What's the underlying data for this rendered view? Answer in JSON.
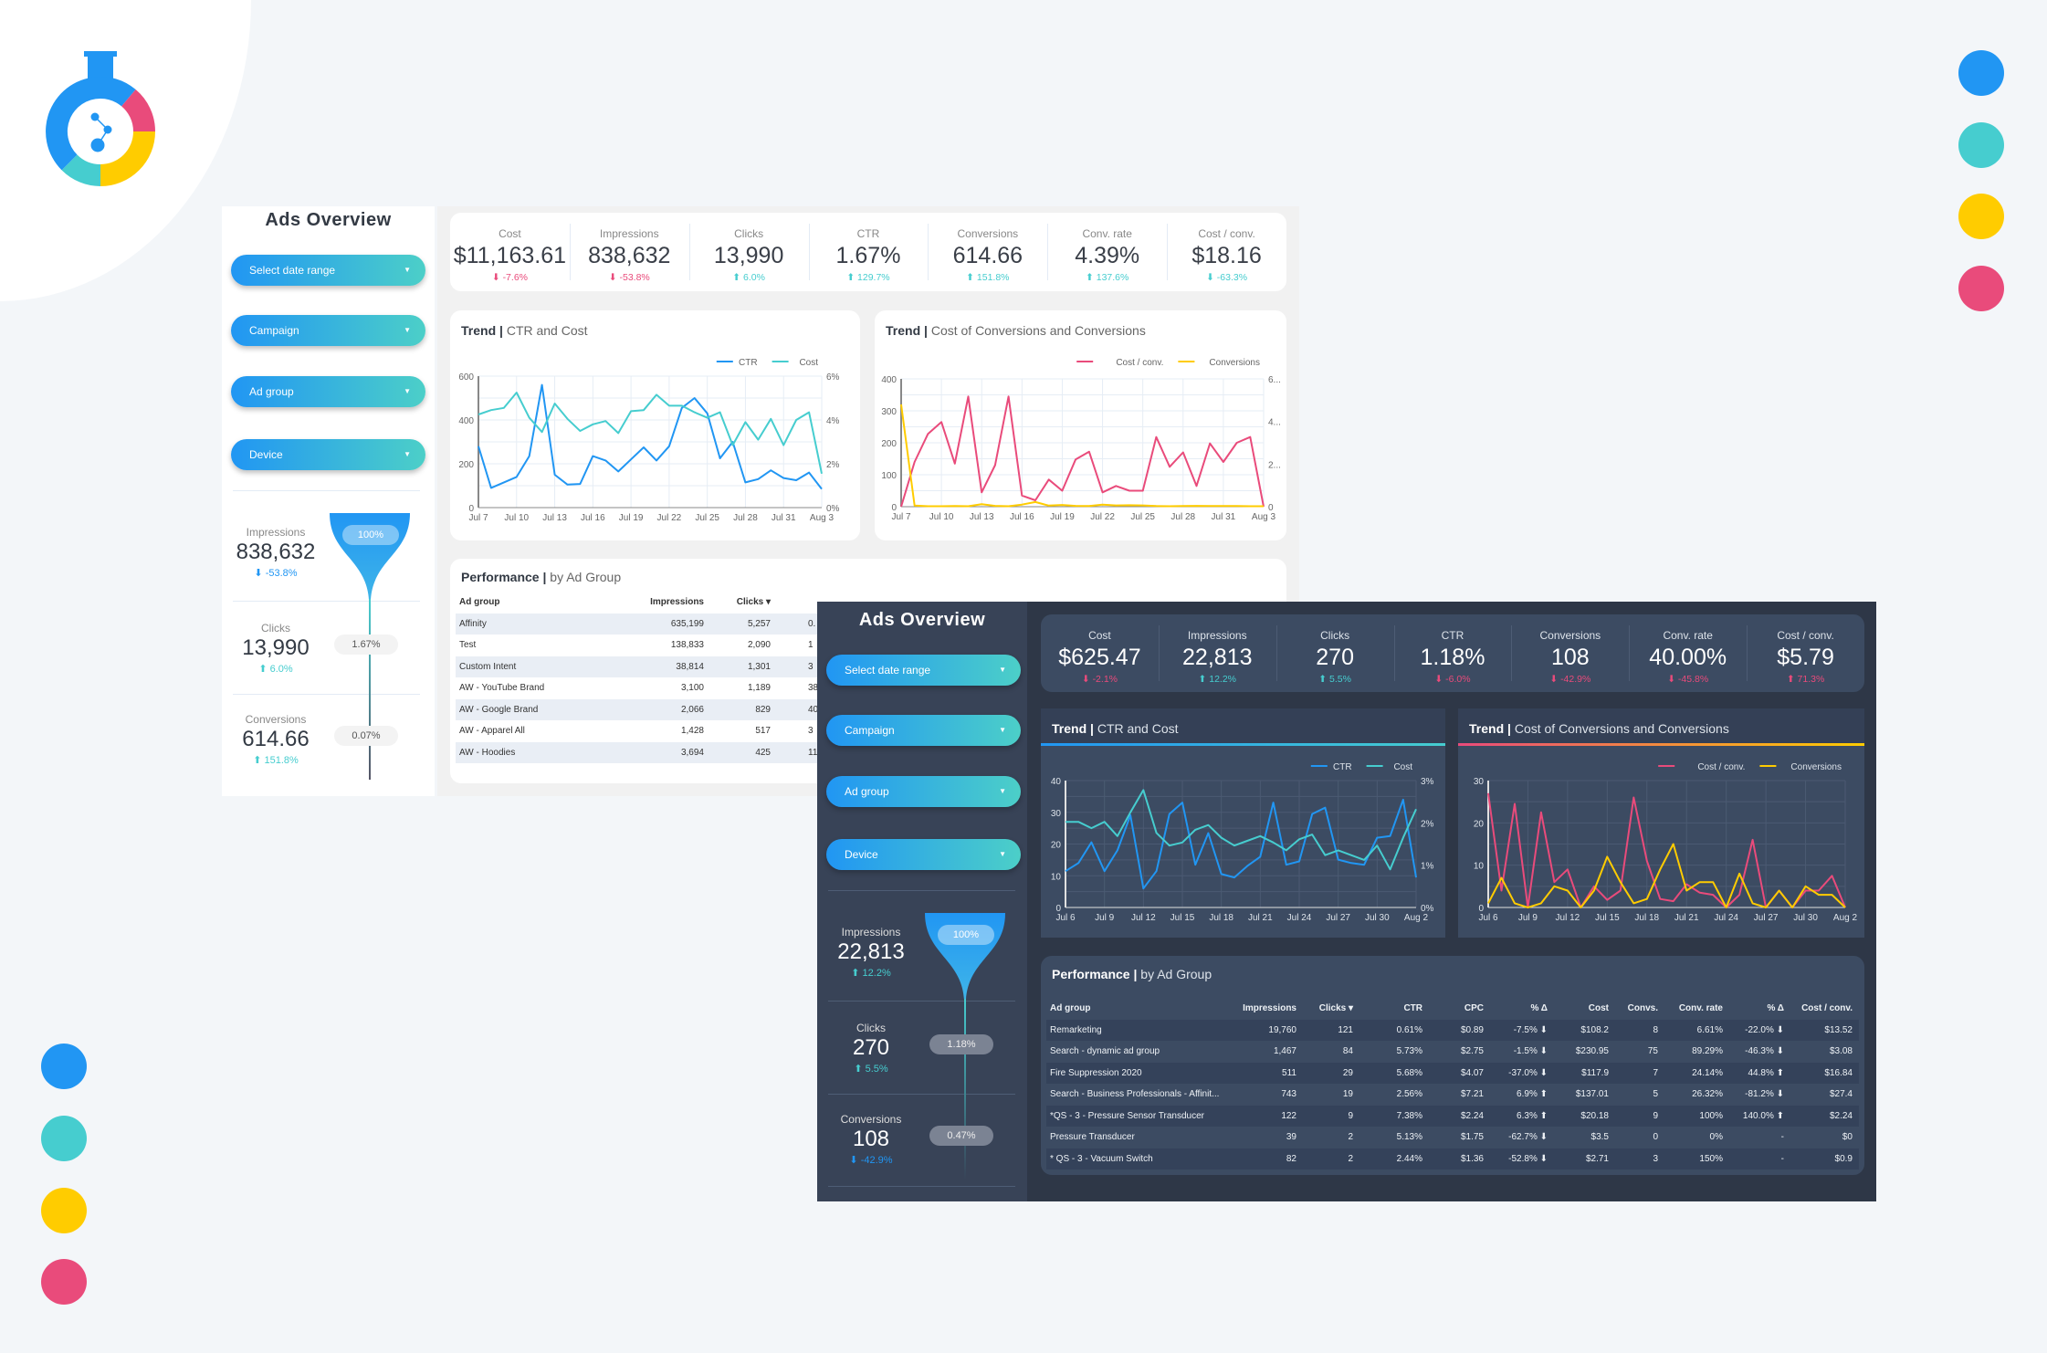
{
  "colors": {
    "blue": "#2196f3",
    "teal": "#46cdcf",
    "yellow": "#ffcc00",
    "pink": "#e94b7b"
  },
  "logo": {
    "icon": "flask-donut-molecule-logo"
  },
  "light": {
    "sidebar": {
      "title": "Ads Overview",
      "filters": [
        "Select date range",
        "Campaign",
        "Ad group",
        "Device"
      ],
      "funnel": [
        {
          "label": "Impressions",
          "value": "838,632",
          "delta": "-53.8%",
          "dir": "down",
          "tone": "blue",
          "rate": "100%"
        },
        {
          "label": "Clicks",
          "value": "13,990",
          "delta": "6.0%",
          "dir": "up",
          "tone": "pos",
          "rate": "1.67%"
        },
        {
          "label": "Conversions",
          "value": "614.66",
          "delta": "151.8%",
          "dir": "up",
          "tone": "pos",
          "rate": "0.07%"
        }
      ]
    },
    "kpis": [
      {
        "label": "Cost",
        "value": "$11,163.61",
        "delta": "-7.6%",
        "dir": "down",
        "tone": "neg"
      },
      {
        "label": "Impressions",
        "value": "838,632",
        "delta": "-53.8%",
        "dir": "down",
        "tone": "neg"
      },
      {
        "label": "Clicks",
        "value": "13,990",
        "delta": "6.0%",
        "dir": "up",
        "tone": "pos"
      },
      {
        "label": "CTR",
        "value": "1.67%",
        "delta": "129.7%",
        "dir": "up",
        "tone": "pos"
      },
      {
        "label": "Conversions",
        "value": "614.66",
        "delta": "151.8%",
        "dir": "up",
        "tone": "pos"
      },
      {
        "label": "Conv. rate",
        "value": "4.39%",
        "delta": "137.6%",
        "dir": "up",
        "tone": "pos"
      },
      {
        "label": "Cost / conv.",
        "value": "$18.16",
        "delta": "-63.3%",
        "dir": "down",
        "tone": "pos"
      }
    ],
    "performance": {
      "title": "Performance |",
      "subtitle": " by Ad Group",
      "headers": [
        "Ad group",
        "Impressions",
        "Clicks ▾"
      ],
      "rows": [
        [
          "Affinity",
          "635,199",
          "5,257",
          "0."
        ],
        [
          "Test",
          "138,833",
          "2,090",
          "1"
        ],
        [
          "Custom Intent",
          "38,814",
          "1,301",
          "3"
        ],
        [
          "AW - YouTube Brand",
          "3,100",
          "1,189",
          "38"
        ],
        [
          "AW - Google Brand",
          "2,066",
          "829",
          "40"
        ],
        [
          "AW - Apparel All",
          "1,428",
          "517",
          "3"
        ],
        [
          "AW - Hoodies",
          "3,694",
          "425",
          "11"
        ]
      ]
    }
  },
  "dark": {
    "sidebar": {
      "title": "Ads Overview",
      "filters": [
        "Select date range",
        "Campaign",
        "Ad group",
        "Device"
      ],
      "funnel": [
        {
          "label": "Impressions",
          "value": "22,813",
          "delta": "12.2%",
          "dir": "up",
          "tone": "pos",
          "rate": "100%"
        },
        {
          "label": "Clicks",
          "value": "270",
          "delta": "5.5%",
          "dir": "up",
          "tone": "pos",
          "rate": "1.18%"
        },
        {
          "label": "Conversions",
          "value": "108",
          "delta": "-42.9%",
          "dir": "down",
          "tone": "blue",
          "rate": "0.47%"
        }
      ]
    },
    "kpis": [
      {
        "label": "Cost",
        "value": "$625.47",
        "delta": "-2.1%",
        "dir": "down",
        "tone": "neg"
      },
      {
        "label": "Impressions",
        "value": "22,813",
        "delta": "12.2%",
        "dir": "up",
        "tone": "pos"
      },
      {
        "label": "Clicks",
        "value": "270",
        "delta": "5.5%",
        "dir": "up",
        "tone": "pos"
      },
      {
        "label": "CTR",
        "value": "1.18%",
        "delta": "-6.0%",
        "dir": "down",
        "tone": "neg"
      },
      {
        "label": "Conversions",
        "value": "108",
        "delta": "-42.9%",
        "dir": "down",
        "tone": "neg"
      },
      {
        "label": "Conv. rate",
        "value": "40.00%",
        "delta": "-45.8%",
        "dir": "down",
        "tone": "neg"
      },
      {
        "label": "Cost / conv.",
        "value": "$5.79",
        "delta": "71.3%",
        "dir": "up",
        "tone": "neg"
      }
    ],
    "performance": {
      "title": "Performance |",
      "subtitle": " by Ad Group",
      "headers": [
        "Ad group",
        "Impressions",
        "Clicks ▾",
        "CTR",
        "CPC",
        "% Δ",
        "Cost",
        "Convs.",
        "Conv. rate",
        "% Δ",
        "Cost / conv."
      ],
      "rows": [
        [
          "Remarketing",
          "19,760",
          "121",
          "0.61%",
          "$0.89",
          "-7.5% ⬇",
          "$108.2",
          "8",
          "6.61%",
          "-22.0% ⬇",
          "$13.52"
        ],
        [
          "Search - dynamic ad group",
          "1,467",
          "84",
          "5.73%",
          "$2.75",
          "-1.5% ⬇",
          "$230.95",
          "75",
          "89.29%",
          "-46.3% ⬇",
          "$3.08"
        ],
        [
          "Fire Suppression 2020",
          "511",
          "29",
          "5.68%",
          "$4.07",
          "-37.0% ⬇",
          "$117.9",
          "7",
          "24.14%",
          "44.8% ⬆",
          "$16.84"
        ],
        [
          "Search - Business Professionals - Affinit...",
          "743",
          "19",
          "2.56%",
          "$7.21",
          "6.9% ⬆",
          "$137.01",
          "5",
          "26.32%",
          "-81.2% ⬇",
          "$27.4"
        ],
        [
          "*QS - 3 - Pressure Sensor Transducer",
          "122",
          "9",
          "7.38%",
          "$2.24",
          "6.3% ⬆",
          "$20.18",
          "9",
          "100%",
          "140.0% ⬆",
          "$2.24"
        ],
        [
          "Pressure Transducer",
          "39",
          "2",
          "5.13%",
          "$1.75",
          "-62.7% ⬇",
          "$3.5",
          "0",
          "0%",
          "-",
          "$0"
        ],
        [
          "* QS - 3 - Vacuum Switch",
          "82",
          "2",
          "2.44%",
          "$1.36",
          "-52.8% ⬇",
          "$2.71",
          "3",
          "150%",
          "-",
          "$0.9"
        ]
      ]
    }
  },
  "chart_data": [
    {
      "type": "line",
      "title": "Trend |",
      "subtitle": " CTR and Cost",
      "x": [
        "Jul 7",
        "Jul 8",
        "Jul 9",
        "Jul 10",
        "Jul 11",
        "Jul 12",
        "Jul 13",
        "Jul 14",
        "Jul 15",
        "Jul 16",
        "Jul 17",
        "Jul 18",
        "Jul 19",
        "Jul 20",
        "Jul 21",
        "Jul 22",
        "Jul 23",
        "Jul 24",
        "Jul 25",
        "Jul 26",
        "Jul 27",
        "Jul 28",
        "Jul 29",
        "Jul 30",
        "Jul 31",
        "Aug 1",
        "Aug 2",
        "Aug 3"
      ],
      "x_ticks": [
        "Jul 7",
        "Jul 10",
        "Jul 13",
        "Jul 16",
        "Jul 19",
        "Jul 22",
        "Jul 25",
        "Jul 28",
        "Jul 31",
        "Aug 3"
      ],
      "yleft": {
        "range": [
          0,
          600
        ],
        "ticks": [
          "0",
          "200",
          "400",
          "600"
        ]
      },
      "yright": {
        "range": [
          0,
          6
        ],
        "ticks": [
          "0%",
          "2%",
          "4%",
          "6%"
        ]
      },
      "legend": "top-right",
      "grid": true,
      "series": [
        {
          "name": "CTR",
          "color": "#2196f3",
          "axis": "right",
          "values": [
            2.8,
            0.9,
            1.15,
            1.4,
            2.35,
            5.6,
            1.5,
            1.05,
            1.08,
            2.35,
            2.15,
            1.65,
            2.2,
            2.75,
            2.15,
            2.8,
            4.55,
            5.0,
            4.3,
            2.25,
            3.0,
            1.15,
            1.3,
            1.7,
            1.35,
            1.25,
            1.6,
            0.85
          ]
        },
        {
          "name": "Cost",
          "color": "#46cdcf",
          "axis": "left",
          "values": [
            425,
            445,
            455,
            525,
            410,
            345,
            475,
            405,
            350,
            380,
            395,
            340,
            440,
            445,
            515,
            465,
            465,
            435,
            410,
            435,
            285,
            390,
            310,
            405,
            285,
            400,
            435,
            155
          ]
        }
      ]
    },
    {
      "type": "line",
      "title": "Trend |",
      "subtitle": " Cost of Conversions and Conversions",
      "x": [
        "Jul 7",
        "Jul 8",
        "Jul 9",
        "Jul 10",
        "Jul 11",
        "Jul 12",
        "Jul 13",
        "Jul 14",
        "Jul 15",
        "Jul 16",
        "Jul 17",
        "Jul 18",
        "Jul 19",
        "Jul 20",
        "Jul 21",
        "Jul 22",
        "Jul 23",
        "Jul 24",
        "Jul 25",
        "Jul 26",
        "Jul 27",
        "Jul 28",
        "Jul 29",
        "Jul 30",
        "Jul 31",
        "Aug 1",
        "Aug 2",
        "Aug 3"
      ],
      "x_ticks": [
        "Jul 7",
        "Jul 10",
        "Jul 13",
        "Jul 16",
        "Jul 19",
        "Jul 22",
        "Jul 25",
        "Jul 28",
        "Jul 31",
        "Aug 3"
      ],
      "yleft": {
        "range": [
          0,
          400
        ],
        "ticks": [
          "0",
          "100",
          "200",
          "300",
          "400"
        ]
      },
      "yright": {
        "range": [
          0,
          600
        ],
        "ticks": [
          "0",
          "2...",
          "4...",
          "6..."
        ]
      },
      "legend": "top-right",
      "grid": true,
      "series": [
        {
          "name": "Cost / conv.",
          "color": "#e94b7b",
          "axis": "left",
          "values": [
            0,
            140,
            228,
            265,
            135,
            345,
            45,
            130,
            345,
            35,
            20,
            85,
            50,
            148,
            172,
            45,
            65,
            50,
            50,
            218,
            125,
            170,
            65,
            198,
            140,
            200,
            218,
            0
          ]
        },
        {
          "name": "Conversions",
          "color": "#ffcc00",
          "axis": "right",
          "values": [
            480,
            5,
            2,
            2,
            3,
            2,
            12,
            4,
            2,
            10,
            22,
            5,
            8,
            4,
            3,
            10,
            6,
            7,
            6,
            3,
            2,
            3,
            4,
            3,
            3,
            3,
            2,
            2
          ]
        }
      ]
    },
    {
      "type": "line",
      "title": "Trend |",
      "subtitle": " CTR and Cost",
      "x": [
        "Jul 6",
        "Jul 7",
        "Jul 8",
        "Jul 9",
        "Jul 10",
        "Jul 11",
        "Jul 12",
        "Jul 13",
        "Jul 14",
        "Jul 15",
        "Jul 16",
        "Jul 17",
        "Jul 18",
        "Jul 19",
        "Jul 20",
        "Jul 21",
        "Jul 22",
        "Jul 23",
        "Jul 24",
        "Jul 25",
        "Jul 26",
        "Jul 27",
        "Jul 28",
        "Jul 29",
        "Jul 30",
        "Jul 31",
        "Aug 1",
        "Aug 2"
      ],
      "x_ticks": [
        "Jul 6",
        "Jul 9",
        "Jul 12",
        "Jul 15",
        "Jul 18",
        "Jul 21",
        "Jul 24",
        "Jul 27",
        "Jul 30",
        "Aug 2"
      ],
      "yleft": {
        "range": [
          0,
          40
        ],
        "ticks": [
          "0",
          "10",
          "20",
          "30",
          "40"
        ]
      },
      "yright": {
        "range": [
          0,
          3
        ],
        "ticks": [
          "0%",
          "1%",
          "2%",
          "3%"
        ]
      },
      "legend": "top-right",
      "grid": true,
      "series": [
        {
          "name": "CTR",
          "color": "#2196f3",
          "axis": "right",
          "values": [
            0.86,
            1.05,
            1.54,
            0.86,
            1.35,
            2.18,
            0.45,
            0.86,
            2.21,
            2.48,
            1.01,
            1.76,
            0.79,
            0.71,
            0.98,
            1.2,
            2.48,
            1.01,
            1.09,
            2.21,
            2.36,
            1.13,
            1.05,
            1.01,
            1.65,
            1.69,
            2.55,
            0.71
          ]
        },
        {
          "name": "Cost",
          "color": "#46cdcf",
          "axis": "left",
          "values": [
            27,
            27,
            25,
            27,
            22.5,
            30,
            37,
            23.5,
            19.5,
            20.5,
            24.5,
            26,
            22,
            19.5,
            21,
            22.5,
            20.5,
            18,
            21.5,
            23,
            16.5,
            18,
            16.5,
            15,
            19.5,
            12,
            22,
            31
          ]
        }
      ]
    },
    {
      "type": "line",
      "title": "Trend |",
      "subtitle": " Cost of Conversions and Conversions",
      "x": [
        "Jul 6",
        "Jul 7",
        "Jul 8",
        "Jul 9",
        "Jul 10",
        "Jul 11",
        "Jul 12",
        "Jul 13",
        "Jul 14",
        "Jul 15",
        "Jul 16",
        "Jul 17",
        "Jul 18",
        "Jul 19",
        "Jul 20",
        "Jul 21",
        "Jul 22",
        "Jul 23",
        "Jul 24",
        "Jul 25",
        "Jul 26",
        "Jul 27",
        "Jul 28",
        "Jul 29",
        "Jul 30",
        "Jul 31",
        "Aug 1",
        "Aug 2"
      ],
      "x_ticks": [
        "Jul 6",
        "Jul 9",
        "Jul 12",
        "Jul 15",
        "Jul 18",
        "Jul 21",
        "Jul 24",
        "Jul 27",
        "Jul 30",
        "Aug 2"
      ],
      "yleft": {
        "range": [
          0,
          30
        ],
        "ticks": [
          "0",
          "10",
          "20",
          "30"
        ]
      },
      "legend": "top-right",
      "grid": true,
      "series": [
        {
          "name": "Cost / conv.",
          "color": "#e94b7b",
          "axis": "left",
          "values": [
            27,
            4,
            24.5,
            0,
            22.5,
            6,
            9,
            0,
            5,
            1.8,
            4,
            26,
            11,
            2,
            1.5,
            5.5,
            3.5,
            3,
            0,
            3,
            16,
            0,
            4,
            0,
            4,
            4,
            7.5,
            0
          ]
        },
        {
          "name": "Conversions",
          "color": "#ffcc00",
          "axis": "left",
          "values": [
            1,
            7,
            1,
            0,
            1,
            5,
            4,
            0,
            4,
            12,
            6,
            1,
            2,
            9,
            15,
            4,
            6,
            6,
            0,
            8,
            1,
            0,
            4,
            0,
            5,
            3,
            3,
            0
          ]
        }
      ]
    }
  ]
}
